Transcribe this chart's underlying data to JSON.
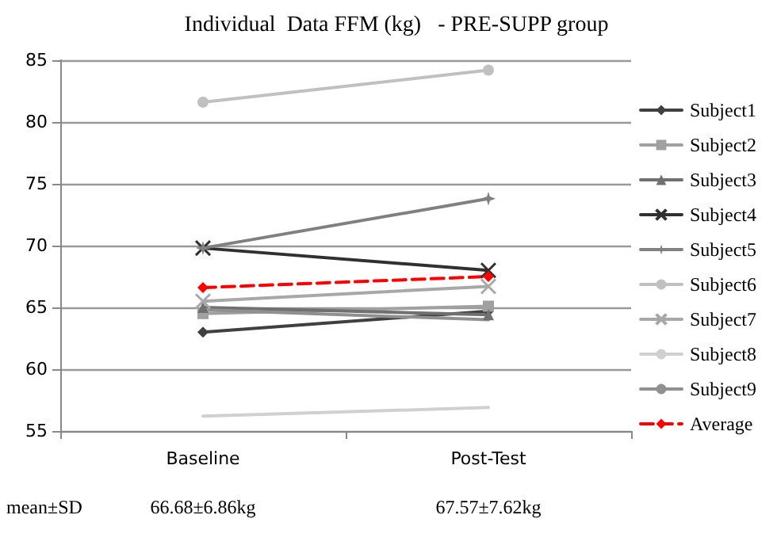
{
  "chart_data": {
    "type": "line",
    "title": "Individual  Data FFM (kg)   - PRE-SUPP group",
    "categories": [
      "Baseline",
      "Post-Test"
    ],
    "series": [
      {
        "name": "Subject1",
        "color": "#404040",
        "marker": "diamond",
        "values": [
          63,
          64.7
        ]
      },
      {
        "name": "Subject2",
        "color": "#a0a0a0",
        "marker": "square",
        "values": [
          64.5,
          65.1
        ]
      },
      {
        "name": "Subject3",
        "color": "#707070",
        "marker": "triangle",
        "values": [
          65,
          64.4
        ]
      },
      {
        "name": "Subject4",
        "color": "#303030",
        "marker": "cross",
        "values": [
          69.8,
          68
        ]
      },
      {
        "name": "Subject5",
        "color": "#808080",
        "marker": "star",
        "values": [
          69.8,
          73.8
        ]
      },
      {
        "name": "Subject6",
        "color": "#c0c0c0",
        "marker": "circle",
        "values": [
          81.6,
          84.2
        ]
      },
      {
        "name": "Subject7",
        "color": "#a8a8a8",
        "marker": "cross",
        "values": [
          65.5,
          66.7
        ]
      },
      {
        "name": "Subject8",
        "color": "#d0d0d0",
        "marker": "none",
        "values": [
          56.2,
          56.9
        ]
      },
      {
        "name": "Subject9",
        "color": "#909090",
        "marker": "none",
        "values": [
          64.8,
          64
        ]
      },
      {
        "name": "Average",
        "color": "#ff0000",
        "marker": "diamond",
        "line_style": "dashed",
        "values": [
          66.6,
          67.5
        ]
      }
    ],
    "ylim": [
      55,
      85
    ],
    "yticks": [
      55,
      60,
      65,
      70,
      75,
      80,
      85
    ],
    "grid": "y",
    "legend": "right",
    "annotations": [
      "mean±SD",
      "66.68±6.86kg",
      "67.57±7.62kg"
    ]
  }
}
